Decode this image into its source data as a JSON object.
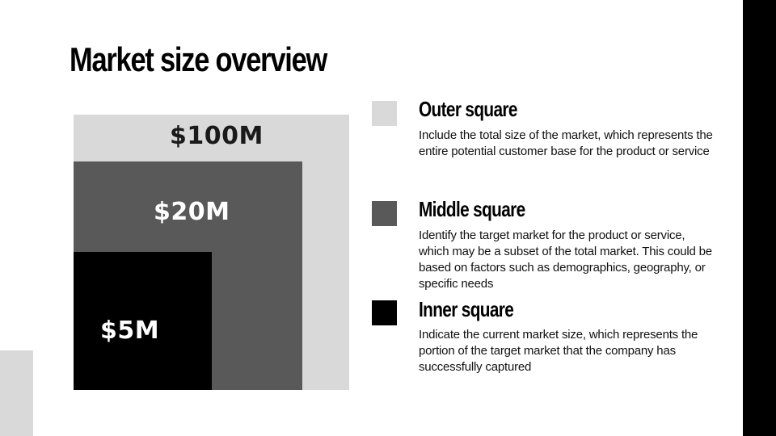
{
  "slide": {
    "title": "Market size overview"
  },
  "squares": {
    "outer": {
      "value": "$100M",
      "color": "#d9d9d9"
    },
    "middle": {
      "value": "$20M",
      "color": "#595959"
    },
    "inner": {
      "value": "$5M",
      "color": "#000000"
    }
  },
  "legend": [
    {
      "title": "Outer square",
      "description": "Include the total size of the market, which represents the entire potential customer base for the product or service"
    },
    {
      "title": "Middle square",
      "description": "Identify the target market for the product or service, which may be a subset of the total market. This could be based on factors such as demographics, geography, or specific needs"
    },
    {
      "title": "Inner square",
      "description": "Indicate the current market size, which represents the portion of the target market that the company has successfully captured"
    }
  ]
}
